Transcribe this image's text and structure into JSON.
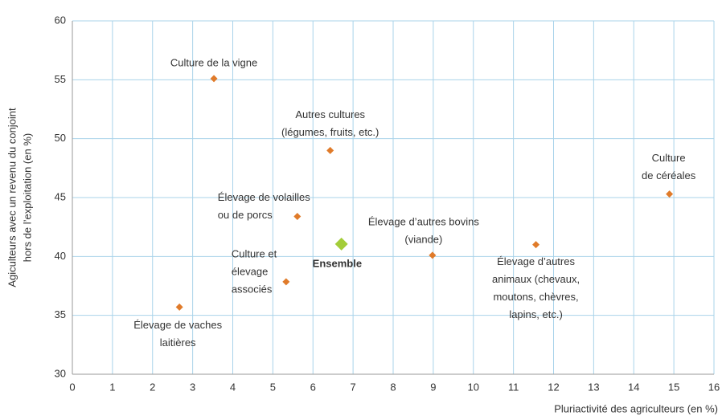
{
  "chart_data": {
    "type": "scatter",
    "xlabel": "Pluriactivité des agriculteurs (en %)",
    "ylabel": [
      "Agiculteurs avec un revenu du conjoint",
      "hors de l’exploitation (en %)"
    ],
    "xlim": [
      0,
      16
    ],
    "xticks": [
      0,
      1,
      2,
      3,
      4,
      5,
      6,
      7,
      8,
      9,
      10,
      11,
      12,
      13,
      14,
      15,
      16
    ],
    "ylim": [
      30,
      60
    ],
    "yticks": [
      30,
      35,
      40,
      45,
      50,
      55,
      60
    ],
    "grid": true,
    "series": [
      {
        "color": "#e07b2a",
        "x": [
          3.53,
          6.43,
          14.89,
          5.61,
          8.98,
          11.56,
          5.33,
          2.67
        ],
        "values": [
          55.1,
          49.0,
          45.3,
          43.4,
          40.1,
          41.0,
          37.85,
          35.7
        ],
        "labels": [
          [
            "Culture de la vigne"
          ],
          [
            "Autres cultures",
            "(légumes, fruits, etc.)"
          ],
          [
            "Culture",
            "de céréales"
          ],
          [
            "Élevage de volailles",
            "ou de porcs"
          ],
          [
            "Élevage d’autres bovins",
            "(viande)"
          ],
          [
            "Élevage d’autres",
            "animaux (chevaux,",
            "moutons, chèvres,",
            "lapins, etc.)"
          ],
          [
            "Culture et",
            "élevage",
            "associés"
          ],
          [
            "Élevage de vaches",
            "laitières"
          ]
        ]
      },
      {
        "color": "#a3cd39",
        "x": [
          6.71
        ],
        "values": [
          41.05
        ],
        "labels": [
          [
            "Ensemble"
          ]
        ]
      }
    ]
  }
}
